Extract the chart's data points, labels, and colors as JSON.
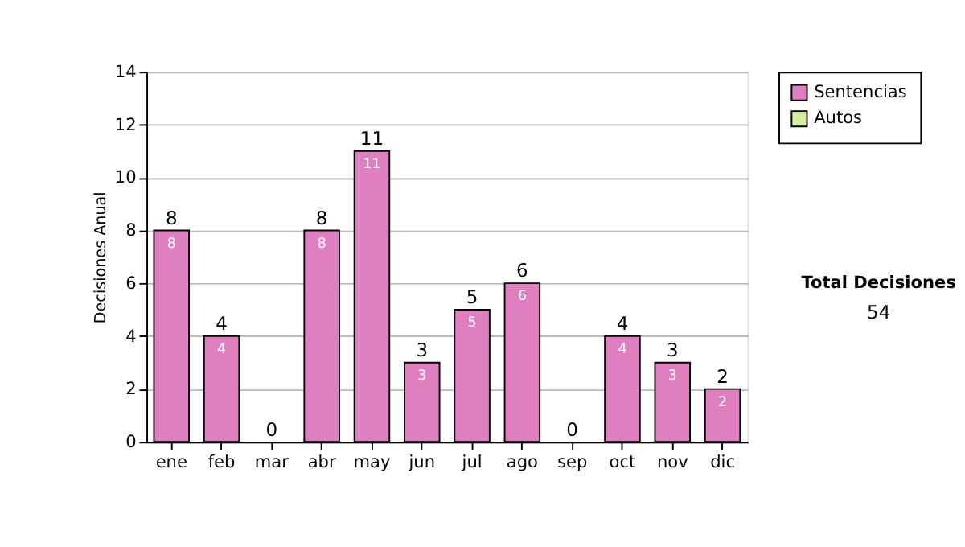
{
  "chart_data": {
    "type": "bar",
    "stacked": true,
    "ylabel": "Decisiones Anual",
    "categories": [
      "ene",
      "feb",
      "mar",
      "abr",
      "may",
      "jun",
      "jul",
      "ago",
      "sep",
      "oct",
      "nov",
      "dic"
    ],
    "series": [
      {
        "name": "Sentencias",
        "color": "#df7fbf",
        "values": [
          8,
          4,
          0,
          8,
          11,
          3,
          5,
          6,
          0,
          4,
          3,
          2
        ],
        "value_labels": [
          "8",
          "4",
          null,
          "8",
          "11",
          "3",
          "5",
          "6",
          null,
          "4",
          "3",
          "2"
        ]
      },
      {
        "name": "Autos",
        "color": "#d4eda0",
        "values": [
          0,
          0,
          0,
          0,
          0,
          0,
          0,
          0,
          0,
          0,
          0,
          0
        ]
      }
    ],
    "totals": [
      "8",
      "4",
      "0",
      "8",
      "11",
      "3",
      "5",
      "6",
      "0",
      "4",
      "3",
      "2"
    ],
    "ylim": [
      0,
      14
    ],
    "yticks": [
      0,
      2,
      4,
      6,
      8,
      10,
      12,
      14
    ],
    "grid": "y",
    "legend": "right",
    "annotations": [
      "Total Decisiones",
      "54"
    ]
  }
}
